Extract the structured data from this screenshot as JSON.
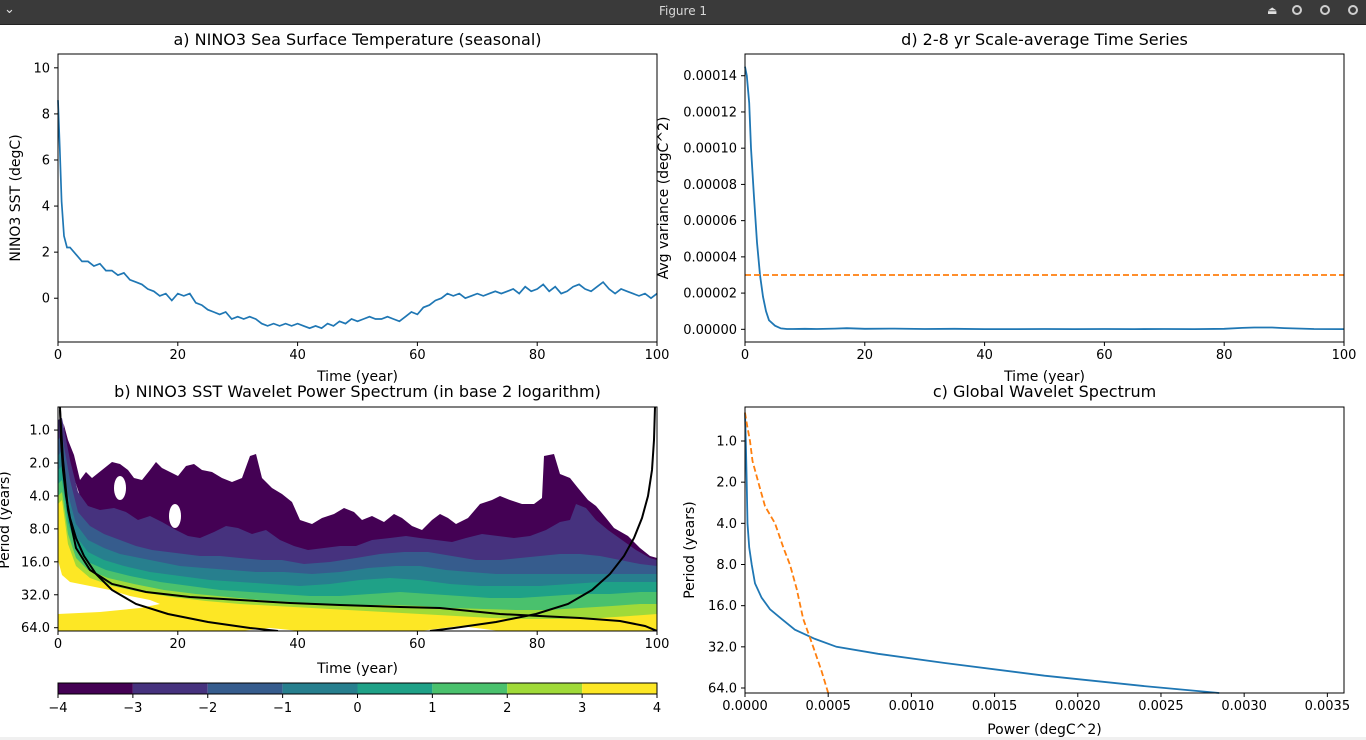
{
  "window": {
    "title": "Figure 1",
    "menu_icon": "chevron-down-icon",
    "buttons": [
      "eject-icon",
      "minimize-icon",
      "maximize-icon",
      "close-icon"
    ]
  },
  "chart_data": [
    {
      "id": "a",
      "type": "line",
      "title": "a) NINO3 Sea Surface Temperature (seasonal)",
      "xlabel": "Time (year)",
      "ylabel": "NINO3 SST (degC)",
      "xlim": [
        0,
        100
      ],
      "ylim": [
        -1.9,
        10.6
      ],
      "xticks": [
        0,
        20,
        40,
        60,
        80,
        100
      ],
      "yticks": [
        0,
        2,
        4,
        6,
        8,
        10
      ],
      "series": [
        {
          "color": "#1f77b4",
          "x": [
            0,
            0.3,
            0.6,
            1,
            1.5,
            2,
            3,
            4,
            5,
            6,
            7,
            8,
            9,
            10,
            11,
            12,
            13,
            14,
            15,
            16,
            17,
            18,
            19,
            20,
            21,
            22,
            23,
            24,
            25,
            26,
            27,
            28,
            29,
            30,
            31,
            32,
            33,
            34,
            35,
            36,
            37,
            38,
            39,
            40,
            41,
            42,
            43,
            44,
            45,
            46,
            47,
            48,
            49,
            50,
            51,
            52,
            53,
            54,
            55,
            56,
            57,
            58,
            59,
            60,
            61,
            62,
            63,
            64,
            65,
            66,
            67,
            68,
            69,
            70,
            71,
            72,
            73,
            74,
            75,
            76,
            77,
            78,
            79,
            80,
            81,
            82,
            83,
            84,
            85,
            86,
            87,
            88,
            89,
            90,
            91,
            92,
            93,
            94,
            95,
            96,
            97,
            98,
            99,
            100
          ],
          "y": [
            8.6,
            6.5,
            4.2,
            2.7,
            2.2,
            2.2,
            1.9,
            1.6,
            1.6,
            1.4,
            1.5,
            1.2,
            1.2,
            1.0,
            1.1,
            0.8,
            0.7,
            0.6,
            0.4,
            0.3,
            0.1,
            0.2,
            -0.1,
            0.2,
            0.1,
            0.2,
            -0.2,
            -0.3,
            -0.5,
            -0.6,
            -0.7,
            -0.6,
            -0.9,
            -0.8,
            -0.9,
            -0.8,
            -0.9,
            -1.1,
            -1.2,
            -1.1,
            -1.2,
            -1.1,
            -1.2,
            -1.1,
            -1.2,
            -1.3,
            -1.2,
            -1.3,
            -1.1,
            -1.2,
            -1.0,
            -1.1,
            -0.9,
            -1.0,
            -0.9,
            -0.8,
            -0.9,
            -0.9,
            -0.8,
            -0.9,
            -1.0,
            -0.8,
            -0.6,
            -0.7,
            -0.4,
            -0.3,
            -0.1,
            0.0,
            0.2,
            0.1,
            0.2,
            0.0,
            0.1,
            0.2,
            0.1,
            0.2,
            0.3,
            0.2,
            0.3,
            0.4,
            0.2,
            0.5,
            0.3,
            0.4,
            0.6,
            0.3,
            0.5,
            0.2,
            0.3,
            0.5,
            0.6,
            0.4,
            0.3,
            0.5,
            0.7,
            0.4,
            0.2,
            0.4,
            0.3,
            0.2,
            0.1,
            0.2,
            0.0,
            0.2
          ]
        }
      ]
    },
    {
      "id": "b",
      "type": "heatmap",
      "title": "b) NINO3 SST Wavelet Power Spectrum (in base 2 logarithm)",
      "xlabel": "Time (year)",
      "ylabel": "Period (years)",
      "xlim": [
        0,
        100
      ],
      "ylim_log2_period": [
        -0.7,
        6.1
      ],
      "xticks": [
        0,
        20,
        40,
        60,
        80,
        100
      ],
      "yticks": [
        "1.0",
        "2.0",
        "4.0",
        "8.0",
        "16.0",
        "32.0",
        "64.0"
      ],
      "yticks_values": [
        1,
        2,
        4,
        8,
        16,
        32,
        64
      ],
      "colorbar": {
        "levels": [
          -4,
          -3,
          -2,
          -1,
          0,
          1,
          2,
          3,
          4
        ],
        "tick_labels": [
          "−4",
          "−3",
          "−2",
          "−1",
          "0",
          "1",
          "2",
          "3",
          "4"
        ],
        "colors": [
          "#440154",
          "#46327e",
          "#365c8d",
          "#277f8e",
          "#1fa187",
          "#4ac16d",
          "#a0da39",
          "#fde725"
        ]
      },
      "colormap": "viridis"
    },
    {
      "id": "c",
      "type": "line",
      "title": "c) Global Wavelet Spectrum",
      "xlabel": "Power (degC^2)",
      "ylabel": "Period (years)",
      "xlim": [
        0,
        0.0036
      ],
      "xticks": [
        "0.0000",
        "0.0005",
        "0.0010",
        "0.0015",
        "0.0020",
        "0.0025",
        "0.0030",
        "0.0035"
      ],
      "xticks_values": [
        0,
        0.0005,
        0.001,
        0.0015,
        0.002,
        0.0025,
        0.003,
        0.0035
      ],
      "yticks": [
        "1.0",
        "2.0",
        "4.0",
        "8.0",
        "16.0",
        "32.0",
        "64.0"
      ],
      "yticks_values": [
        1,
        2,
        4,
        8,
        16,
        32,
        64
      ],
      "series": [
        {
          "color": "#1f77b4",
          "style": "solid",
          "power": [
            0,
            5e-06,
            1e-05,
            1.5e-05,
            2.5e-05,
            4e-05,
            6e-05,
            0.0001,
            0.00015,
            0.00022,
            0.0003,
            0.00042,
            0.00055,
            0.0008,
            0.0012,
            0.0018,
            0.0024,
            0.00285
          ],
          "period": [
            0.62,
            1.0,
            2.0,
            4.0,
            6.0,
            8.0,
            11.0,
            14.0,
            17.0,
            20.0,
            24.0,
            28.0,
            32.0,
            36.0,
            42.0,
            52.0,
            62.0,
            70.0
          ]
        },
        {
          "color": "#ff7f0e",
          "style": "dashed",
          "power": [
            0,
            1.5e-05,
            3e-05,
            4.5e-05,
            8e-05,
            0.00012,
            0.00018,
            0.00023,
            0.00027,
            0.00031,
            0.00035,
            0.00041,
            0.00046,
            0.0005
          ],
          "period": [
            0.62,
            0.8,
            1.0,
            1.4,
            2.0,
            3.0,
            4.0,
            6.0,
            8.0,
            12.0,
            20.0,
            32.0,
            48.0,
            70.0
          ]
        }
      ]
    },
    {
      "id": "d",
      "type": "line",
      "title": "d) 2-8 yr Scale-average Time Series",
      "xlabel": "Time (year)",
      "ylabel": "Avg variance (degC^2)",
      "xlim": [
        0,
        100
      ],
      "ylim": [
        -7e-06,
        0.000152
      ],
      "xticks": [
        0,
        20,
        40,
        60,
        80,
        100
      ],
      "yticks": [
        "0.00000",
        "0.00002",
        "0.00004",
        "0.00006",
        "0.00008",
        "0.00010",
        "0.00012",
        "0.00014"
      ],
      "yticks_values": [
        0,
        2e-05,
        4e-05,
        6e-05,
        8e-05,
        0.0001,
        0.00012,
        0.00014
      ],
      "series": [
        {
          "color": "#1f77b4",
          "style": "solid",
          "x": [
            0,
            0.3,
            0.7,
            1,
            1.5,
            2,
            2.5,
            3,
            3.5,
            4,
            5,
            6,
            7,
            8,
            10,
            12,
            15,
            17,
            20,
            25,
            30,
            35,
            40,
            45,
            50,
            55,
            60,
            65,
            70,
            75,
            80,
            83,
            85,
            88,
            90,
            95,
            100
          ],
          "y": [
            0.000145,
            0.00014,
            0.000125,
            0.0001,
            7.3e-05,
            4.8e-05,
            3e-05,
            1.8e-05,
            1e-05,
            5e-06,
            2e-06,
            5e-07,
            2e-07,
            2e-07,
            3e-07,
            2e-07,
            4e-07,
            6e-07,
            3e-07,
            4e-07,
            2e-07,
            3e-07,
            1e-07,
            1e-07,
            2e-07,
            1e-07,
            2e-07,
            1e-07,
            2e-07,
            1e-07,
            3e-07,
            8e-07,
            1e-06,
            1e-06,
            7e-07,
            2e-07,
            1e-07
          ]
        },
        {
          "color": "#ff7f0e",
          "style": "dashed",
          "x": [
            0,
            100
          ],
          "y": [
            3e-05,
            3e-05
          ]
        }
      ]
    }
  ]
}
